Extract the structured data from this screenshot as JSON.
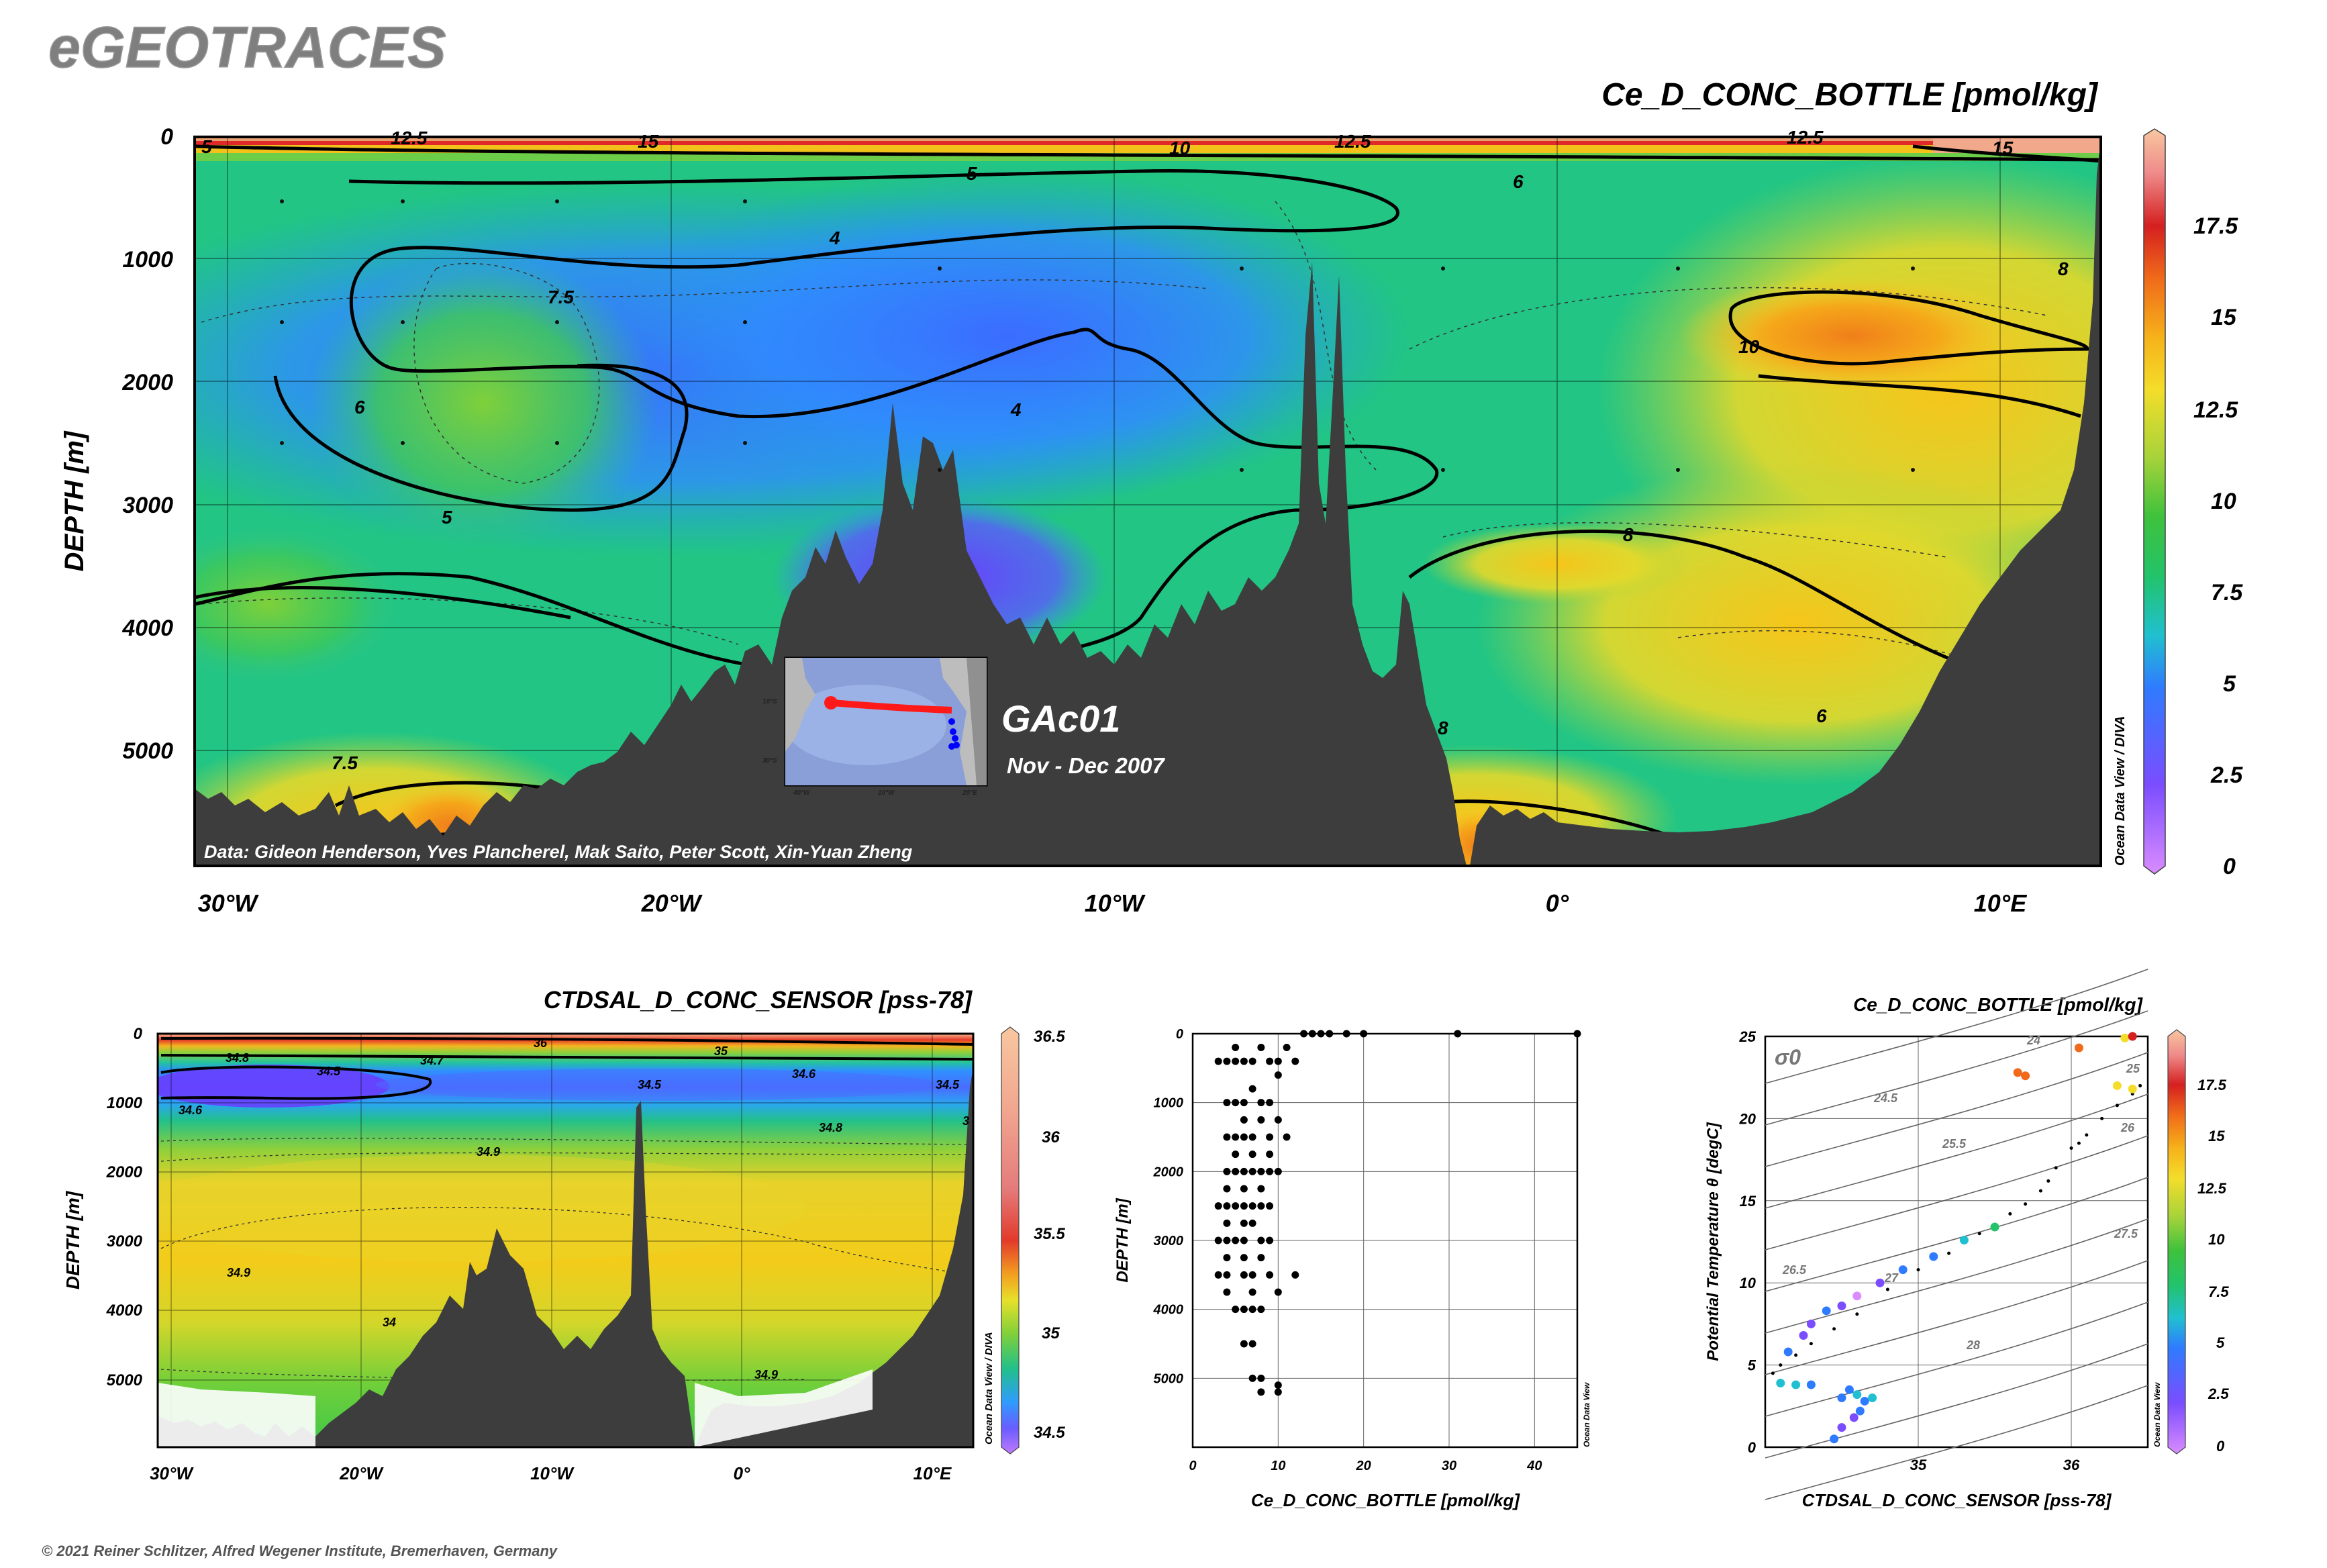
{
  "brand": "eGEOTRACES",
  "copyright": "© 2021 Reiner Schlitzer, Alfred Wegener Institute, Bremerhaven, Germany",
  "colors": {
    "land": "#3d3d3d",
    "contour": "#000000",
    "text": "#000000",
    "brand": "#7f7f7f"
  },
  "main_section": {
    "title": "Ce_D_CONC_BOTTLE [pmol/kg]",
    "ylabel": "DEPTH [m]",
    "y_ticks": [
      "0",
      "1000",
      "2000",
      "3000",
      "4000",
      "5000"
    ],
    "x_ticks": [
      "30°W",
      "20°W",
      "10°W",
      "0°",
      "10°E"
    ],
    "credit": "Data: Gideon Henderson, Yves Plancherel, Mak Saito, Peter Scott, Xin-Yuan Zheng",
    "side_label": "Ocean Data View / DIVA",
    "cruise_name": "GAc01",
    "cruise_date": "Nov - Dec 2007",
    "colorbar_ticks": [
      "17.5",
      "15",
      "12.5",
      "10",
      "7.5",
      "5",
      "2.5",
      "0"
    ],
    "contour_labels": [
      "5",
      "12.5",
      "15",
      "10",
      "12.5",
      "12.5",
      "15",
      "5",
      "6",
      "4",
      "8",
      "7.5",
      "10",
      "6",
      "4",
      "5",
      "8",
      "7.5",
      "6",
      "8"
    ],
    "inset_labels": [
      "40°W",
      "10°W",
      "20°E",
      "10°S",
      "30°S"
    ]
  },
  "sal_section": {
    "title": "CTDSAL_D_CONC_SENSOR [pss-78]",
    "ylabel": "DEPTH [m]",
    "y_ticks": [
      "0",
      "1000",
      "2000",
      "3000",
      "4000",
      "5000"
    ],
    "x_ticks": [
      "30°W",
      "20°W",
      "10°W",
      "0°",
      "10°E"
    ],
    "side_label": "Ocean Data View / DIVA",
    "colorbar_ticks": [
      "36.5",
      "36",
      "35.5",
      "35",
      "34.5"
    ],
    "contour_labels": [
      "36",
      "34.8",
      "34.7",
      "35",
      "34.5",
      "34.6",
      "34.5",
      "34.6",
      "34.5",
      "34.8",
      "34.9",
      "34.9",
      "34.9",
      "34",
      "3"
    ]
  },
  "chart_data": [
    {
      "type": "heatmap",
      "title": "Ce_D_CONC_BOTTLE [pmol/kg]",
      "ylabel": "DEPTH [m]",
      "xlim": [
        -31,
        12.5
      ],
      "ylim": [
        6000,
        0
      ],
      "x_ticks": [
        -30,
        -20,
        -10,
        0,
        10
      ],
      "y_ticks": [
        0,
        1000,
        2000,
        3000,
        4000,
        5000
      ],
      "colorbar_range": [
        0,
        20
      ],
      "contour_levels": [
        4,
        5,
        6,
        7.5,
        8,
        10,
        12.5,
        15
      ]
    },
    {
      "type": "heatmap",
      "title": "CTDSAL_D_CONC_SENSOR [pss-78]",
      "ylabel": "DEPTH [m]",
      "xlim": [
        -31,
        12.5
      ],
      "ylim": [
        6000,
        0
      ],
      "colorbar_range": [
        34.4,
        36.6
      ],
      "contour_levels": [
        34.5,
        34.6,
        34.7,
        34.8,
        34.9,
        35,
        36
      ]
    },
    {
      "type": "scatter",
      "xlabel": "Ce_D_CONC_BOTTLE [pmol/kg]",
      "ylabel": "DEPTH [m]",
      "side_label": "Ocean Data View",
      "xlim": [
        0,
        45
      ],
      "ylim": [
        6000,
        0
      ],
      "x_ticks": [
        "0",
        "10",
        "20",
        "30",
        "40"
      ],
      "y_ticks": [
        "0",
        "1000",
        "2000",
        "3000",
        "4000",
        "5000"
      ],
      "points": [
        {
          "x": 4,
          "y": 400
        },
        {
          "x": 5,
          "y": 400
        },
        {
          "x": 6,
          "y": 400
        },
        {
          "x": 7,
          "y": 400
        },
        {
          "x": 9,
          "y": 400
        },
        {
          "x": 10,
          "y": 400
        },
        {
          "x": 3,
          "y": 400
        },
        {
          "x": 5,
          "y": 200
        },
        {
          "x": 8,
          "y": 200
        },
        {
          "x": 11,
          "y": 200
        },
        {
          "x": 12,
          "y": 400
        },
        {
          "x": 10,
          "y": 600
        },
        {
          "x": 7,
          "y": 800
        },
        {
          "x": 4,
          "y": 1000
        },
        {
          "x": 5,
          "y": 1000
        },
        {
          "x": 6,
          "y": 1000
        },
        {
          "x": 8,
          "y": 1000
        },
        {
          "x": 9,
          "y": 1000
        },
        {
          "x": 6,
          "y": 1250
        },
        {
          "x": 8,
          "y": 1250
        },
        {
          "x": 10,
          "y": 1250
        },
        {
          "x": 4,
          "y": 1500
        },
        {
          "x": 5,
          "y": 1500
        },
        {
          "x": 6,
          "y": 1500
        },
        {
          "x": 7,
          "y": 1500
        },
        {
          "x": 9,
          "y": 1500
        },
        {
          "x": 11,
          "y": 1500
        },
        {
          "x": 5,
          "y": 1750
        },
        {
          "x": 7,
          "y": 1750
        },
        {
          "x": 9,
          "y": 1750
        },
        {
          "x": 4,
          "y": 2000
        },
        {
          "x": 5,
          "y": 2000
        },
        {
          "x": 6,
          "y": 2000
        },
        {
          "x": 7,
          "y": 2000
        },
        {
          "x": 8,
          "y": 2000
        },
        {
          "x": 9,
          "y": 2000
        },
        {
          "x": 10,
          "y": 2000
        },
        {
          "x": 4,
          "y": 2250
        },
        {
          "x": 6,
          "y": 2250
        },
        {
          "x": 8,
          "y": 2250
        },
        {
          "x": 3,
          "y": 2500
        },
        {
          "x": 4,
          "y": 2500
        },
        {
          "x": 5,
          "y": 2500
        },
        {
          "x": 6,
          "y": 2500
        },
        {
          "x": 7,
          "y": 2500
        },
        {
          "x": 8,
          "y": 2500
        },
        {
          "x": 9,
          "y": 2500
        },
        {
          "x": 4,
          "y": 2750
        },
        {
          "x": 6,
          "y": 2750
        },
        {
          "x": 7,
          "y": 2750
        },
        {
          "x": 3,
          "y": 3000
        },
        {
          "x": 4,
          "y": 3000
        },
        {
          "x": 5,
          "y": 3000
        },
        {
          "x": 6,
          "y": 3000
        },
        {
          "x": 8,
          "y": 3000
        },
        {
          "x": 9,
          "y": 3000
        },
        {
          "x": 4,
          "y": 3250
        },
        {
          "x": 6,
          "y": 3250
        },
        {
          "x": 8,
          "y": 3250
        },
        {
          "x": 3,
          "y": 3500
        },
        {
          "x": 4,
          "y": 3500
        },
        {
          "x": 6,
          "y": 3500
        },
        {
          "x": 7,
          "y": 3500
        },
        {
          "x": 9,
          "y": 3500
        },
        {
          "x": 12,
          "y": 3500
        },
        {
          "x": 4,
          "y": 3750
        },
        {
          "x": 7,
          "y": 3750
        },
        {
          "x": 10,
          "y": 3750
        },
        {
          "x": 5,
          "y": 4000
        },
        {
          "x": 6,
          "y": 4000
        },
        {
          "x": 7,
          "y": 4000
        },
        {
          "x": 8,
          "y": 4000
        },
        {
          "x": 6,
          "y": 4500
        },
        {
          "x": 7,
          "y": 4500
        },
        {
          "x": 7,
          "y": 5000
        },
        {
          "x": 8,
          "y": 5000
        },
        {
          "x": 8,
          "y": 5200
        },
        {
          "x": 10,
          "y": 5100
        },
        {
          "x": 10,
          "y": 5200
        },
        {
          "x": 13,
          "y": 0
        },
        {
          "x": 14,
          "y": 0
        },
        {
          "x": 15,
          "y": 0
        },
        {
          "x": 16,
          "y": 0
        },
        {
          "x": 18,
          "y": 0
        },
        {
          "x": 20,
          "y": 0
        },
        {
          "x": 31,
          "y": 0
        },
        {
          "x": 45,
          "y": 0
        }
      ]
    },
    {
      "type": "scatter",
      "title": "Ce_D_CONC_BOTTLE [pmol/kg]",
      "xlabel": "CTDSAL_D_CONC_SENSOR [pss-78]",
      "ylabel": "Potential Temperature θ [degC]",
      "side_label": "Ocean Data View",
      "sigma_label": "σ0",
      "xlim": [
        34.0,
        36.5
      ],
      "ylim": [
        0,
        25
      ],
      "x_ticks": [
        "35",
        "36"
      ],
      "y_ticks": [
        "0",
        "5",
        "10",
        "15",
        "20",
        "25"
      ],
      "density_labels": [
        "24",
        "24.5",
        "25",
        "25.5",
        "26",
        "26.5",
        "27",
        "27.5",
        "28"
      ],
      "colorbar_ticks": [
        "17.5",
        "15",
        "12.5",
        "10",
        "7.5",
        "5",
        "2.5",
        "0"
      ],
      "colored_points": [
        {
          "x": 34.5,
          "y": 3.0,
          "c": 6
        },
        {
          "x": 34.55,
          "y": 3.5,
          "c": 6
        },
        {
          "x": 34.6,
          "y": 3.2,
          "c": 7
        },
        {
          "x": 34.65,
          "y": 2.8,
          "c": 5
        },
        {
          "x": 34.62,
          "y": 2.2,
          "c": 5
        },
        {
          "x": 34.58,
          "y": 1.8,
          "c": 4
        },
        {
          "x": 34.5,
          "y": 1.2,
          "c": 4
        },
        {
          "x": 34.45,
          "y": 0.5,
          "c": 5
        },
        {
          "x": 34.7,
          "y": 3.0,
          "c": 7
        },
        {
          "x": 34.2,
          "y": 3.8,
          "c": 7
        },
        {
          "x": 34.3,
          "y": 3.8,
          "c": 6
        },
        {
          "x": 34.1,
          "y": 3.9,
          "c": 7
        },
        {
          "x": 34.15,
          "y": 5.8,
          "c": 6
        },
        {
          "x": 34.25,
          "y": 6.8,
          "c": 4
        },
        {
          "x": 34.3,
          "y": 7.5,
          "c": 3
        },
        {
          "x": 34.4,
          "y": 8.3,
          "c": 5
        },
        {
          "x": 34.5,
          "y": 8.6,
          "c": 3
        },
        {
          "x": 34.6,
          "y": 9.2,
          "c": 2
        },
        {
          "x": 34.75,
          "y": 10.0,
          "c": 4
        },
        {
          "x": 34.9,
          "y": 10.8,
          "c": 5
        },
        {
          "x": 35.1,
          "y": 11.6,
          "c": 6
        },
        {
          "x": 35.3,
          "y": 12.6,
          "c": 7
        },
        {
          "x": 35.5,
          "y": 13.4,
          "c": 9
        },
        {
          "x": 35.65,
          "y": 22.8,
          "c": 16
        },
        {
          "x": 35.7,
          "y": 22.6,
          "c": 17
        },
        {
          "x": 36.05,
          "y": 24.3,
          "c": 17
        },
        {
          "x": 36.3,
          "y": 22.0,
          "c": 14
        },
        {
          "x": 36.4,
          "y": 21.8,
          "c": 14
        },
        {
          "x": 36.35,
          "y": 24.9,
          "c": 14
        },
        {
          "x": 36.4,
          "y": 25.0,
          "c": 19
        }
      ],
      "black_points": [
        {
          "x": 34.05,
          "y": 4.5
        },
        {
          "x": 34.1,
          "y": 5.0
        },
        {
          "x": 34.2,
          "y": 5.6
        },
        {
          "x": 34.3,
          "y": 6.3
        },
        {
          "x": 34.45,
          "y": 7.2
        },
        {
          "x": 34.6,
          "y": 8.1
        },
        {
          "x": 34.8,
          "y": 9.6
        },
        {
          "x": 35.0,
          "y": 10.8
        },
        {
          "x": 35.2,
          "y": 11.8
        },
        {
          "x": 35.4,
          "y": 13.0
        },
        {
          "x": 35.6,
          "y": 14.2
        },
        {
          "x": 35.8,
          "y": 15.6
        },
        {
          "x": 35.9,
          "y": 17.0
        },
        {
          "x": 36.0,
          "y": 18.2
        },
        {
          "x": 36.1,
          "y": 19.0
        },
        {
          "x": 36.2,
          "y": 20.0
        },
        {
          "x": 36.3,
          "y": 20.8
        },
        {
          "x": 36.4,
          "y": 21.5
        },
        {
          "x": 36.45,
          "y": 22.0
        },
        {
          "x": 35.7,
          "y": 14.8
        },
        {
          "x": 35.85,
          "y": 16.2
        },
        {
          "x": 36.05,
          "y": 18.5
        }
      ]
    }
  ]
}
